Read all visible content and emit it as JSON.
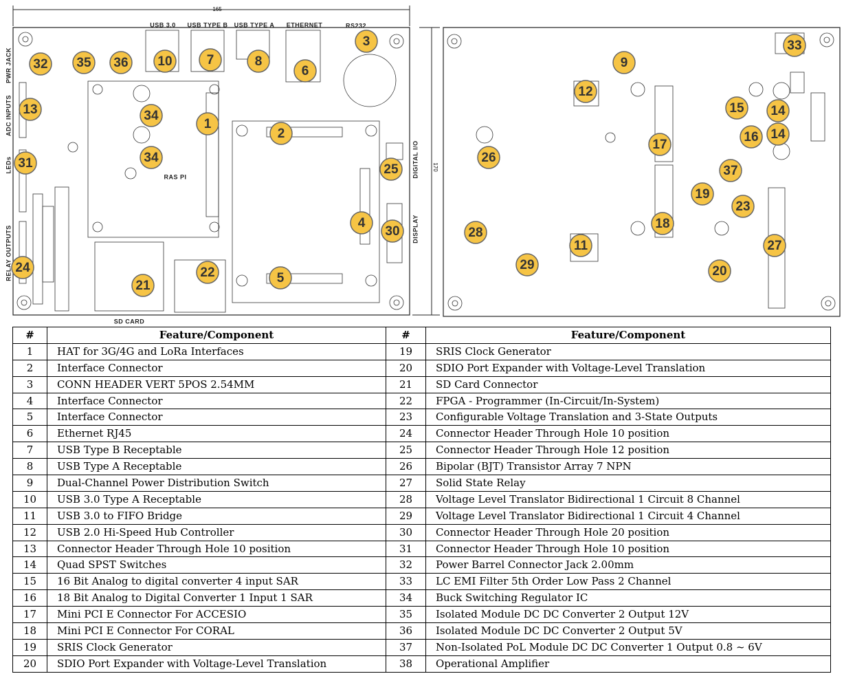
{
  "left_board": {
    "width_dimension": "165",
    "height_dimension": "170",
    "labels": [
      "USB 3.0",
      "USB TYPE B",
      "USB TYPE A",
      "ETHERNET",
      "RS232",
      "PWR JACK",
      "ADC INPUTS",
      "LEDs",
      "RELAY OUTPUTS",
      "DIGITAL I/O",
      "DISPLAY",
      "SD CARD",
      "RAS PI"
    ],
    "markers": [
      "32",
      "35",
      "36",
      "10",
      "7",
      "8",
      "6",
      "3",
      "13",
      "1",
      "2",
      "34",
      "34",
      "31",
      "25",
      "4",
      "30",
      "24",
      "22",
      "5",
      "21"
    ]
  },
  "right_board": {
    "markers": [
      "33",
      "9",
      "12",
      "15",
      "14",
      "14",
      "16",
      "17",
      "26",
      "37",
      "19",
      "23",
      "18",
      "28",
      "11",
      "27",
      "29",
      "20"
    ]
  },
  "table": {
    "header": [
      "#",
      "Feature/Component",
      "#",
      "Feature/Component"
    ],
    "rows": [
      [
        "1",
        "HAT for 3G/4G and LoRa Interfaces",
        "19",
        "SRIS Clock Generator"
      ],
      [
        "2",
        "Interface Connector",
        "20",
        "SDIO Port Expander with Voltage-Level Translation"
      ],
      [
        "3",
        "CONN HEADER VERT 5POS 2.54MM",
        "21",
        "SD Card Connector"
      ],
      [
        "4",
        "Interface Connector",
        "22",
        "FPGA - Programmer (In-Circuit/In-System)"
      ],
      [
        "5",
        "Interface Connector",
        "23",
        "Configurable Voltage Translation and 3-State Outputs"
      ],
      [
        "6",
        "Ethernet RJ45",
        "24",
        "Connector Header Through Hole 10 position"
      ],
      [
        "7",
        "USB Type B Receptable",
        "25",
        "Connector Header Through Hole 12 position"
      ],
      [
        "8",
        "USB Type A Receptable",
        "26",
        "Bipolar (BJT) Transistor Array 7 NPN"
      ],
      [
        "9",
        "Dual-Channel Power Distribution Switch",
        "27",
        "Solid State Relay"
      ],
      [
        "10",
        "USB 3.0 Type A Receptable",
        "28",
        "Voltage Level Translator Bidirectional 1 Circuit 8 Channel"
      ],
      [
        "11",
        "USB 3.0 to FIFO Bridge",
        "29",
        "Voltage Level Translator Bidirectional 1 Circuit 4 Channel"
      ],
      [
        "12",
        "USB 2.0 Hi-Speed Hub Controller",
        "30",
        "Connector Header Through Hole 20 position"
      ],
      [
        "13",
        "Connector Header Through Hole 10 position",
        "31",
        "Connector Header Through Hole 10 position"
      ],
      [
        "14",
        "Quad SPST Switches",
        "32",
        "Power Barrel Connector Jack 2.00mm"
      ],
      [
        "15",
        "16 Bit Analog to digital converter 4 input SAR",
        "33",
        "LC EMI Filter 5th Order Low Pass 2 Channel"
      ],
      [
        "16",
        "18 Bit Analog to Digital Converter 1 Input 1 SAR",
        "34",
        "Buck Switching Regulator IC"
      ],
      [
        "17",
        "Mini PCI E Connector For ACCESIO",
        "35",
        "Isolated Module DC DC Converter 2 Output 12V"
      ],
      [
        "18",
        "Mini PCI E Connector For CORAL",
        "36",
        "Isolated Module DC DC Converter 2 Output 5V"
      ],
      [
        "19",
        "SRIS Clock Generator",
        "37",
        "Non-Isolated PoL Module DC DC Converter 1 Output 0.8 ~ 6V"
      ],
      [
        "20",
        "SDIO Port Expander with Voltage-Level Translation",
        "38",
        "Operational Amplifier"
      ]
    ]
  }
}
